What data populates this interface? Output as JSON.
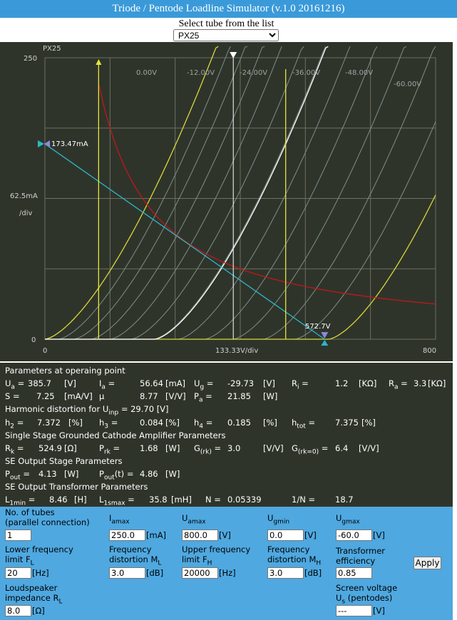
{
  "window": {
    "title": "Triode / Pentode Loadline Simulator (v.1.0 20161216)"
  },
  "tube_selector": {
    "label": "Select tube from the list",
    "selected": "PX25"
  },
  "plot": {
    "tube_name": "PX25",
    "y_top_label": "250",
    "y_zero_label": "0",
    "y_scale_label": "62.5mA",
    "y_div_label": "/div",
    "x_zero_label": "0",
    "x_end_label": "800",
    "x_scale_label": "133.33V/div",
    "current_marker": "173.47mA",
    "voltage_marker": "572.7V",
    "grid_labels": [
      "0.00V",
      "-12.00V",
      "-24.00V",
      "-36.00V",
      "-48.00V",
      "-60.00V"
    ],
    "colors": {
      "background": "#2f342b",
      "grid": "#6b7061",
      "curves": "#7d8f8a",
      "limit_curves": "#d8d83a",
      "operating_curve": "#ffffff",
      "dissipation": "#c01818",
      "loadline": "#2bb7c8",
      "markers": "#e6e63a"
    }
  },
  "params": {
    "op_header": "Parameters at operaing point",
    "ua": {
      "label": "U",
      "sub": "a",
      "eq": "=",
      "value": "385.7",
      "unit": "[V]"
    },
    "ia": {
      "label": "I",
      "sub": "a",
      "eq": "=",
      "value": "56.64",
      "unit": "[mA]"
    },
    "ug": {
      "label": "U",
      "sub": "g",
      "eq": "=",
      "value": "-29.73",
      "unit": "[V]"
    },
    "ri": {
      "label": "R",
      "sub": "i",
      "eq": "=",
      "value": "1.2",
      "unit": "[KΩ]"
    },
    "ra": {
      "label": "R",
      "sub": "a",
      "eq": "=",
      "value": "3.3",
      "unit": "[KΩ]"
    },
    "s": {
      "label": "S =",
      "value": "7.25",
      "unit": "[mA/V]"
    },
    "mu": {
      "label": "μ",
      "value": "8.77",
      "unit": "[V/V]"
    },
    "pa": {
      "label": "P",
      "sub": "a",
      "eq": "=",
      "value": "21.85",
      "unit": "[W]"
    },
    "harm_header_pre": "Harmonic distortion for U",
    "harm_header_sub": "inp",
    "harm_header_post": " = 29.70 [V]",
    "h2": {
      "label": "h",
      "sub": "2",
      "eq": "=",
      "value": "7.372",
      "unit": "[%]"
    },
    "h3": {
      "label": "h",
      "sub": "3",
      "eq": "=",
      "value": "0.084",
      "unit": "[%]"
    },
    "h4": {
      "label": "h",
      "sub": "4",
      "eq": "=",
      "value": "0.185",
      "unit": "[%]"
    },
    "htot": {
      "label": "h",
      "sub": "tot",
      "eq": "=",
      "value": "7.375",
      "unit": "[%]"
    },
    "gca_header": "Single Stage Grounded Cathode Amplifier Parameters",
    "rk": {
      "label": "R",
      "sub": "k",
      "eq": "=",
      "value": "524.9",
      "unit": "[Ω]"
    },
    "prk": {
      "label": "P",
      "sub": "rk",
      "eq": "=",
      "value": "1.68",
      "unit": "[W]"
    },
    "grk": {
      "label": "G",
      "sub": "(rk)",
      "eq": "=",
      "value": "3.0",
      "unit": "[V/V]"
    },
    "grk0": {
      "label": "G",
      "sub": "(rk=0)",
      "eq": "=",
      "value": "6.4",
      "unit": "[V/V]"
    },
    "se_header": "SE Output Stage Parameters",
    "pout": {
      "label": "P",
      "sub": "out",
      "eq": "=",
      "value": "4.13",
      "unit": "[W]"
    },
    "poutt": {
      "label": "P",
      "sub": "out",
      "mid": "(t)",
      "eq": "=",
      "value": "4.86",
      "unit": "[W]"
    },
    "tr_header": "SE Output Transformer Parameters",
    "l1min": {
      "label": "L",
      "sub": "1min",
      "eq": "=",
      "value": "8.46",
      "unit": "[H]"
    },
    "l1smax": {
      "label": "L",
      "sub": "1smax",
      "eq": "=",
      "value": "35.8",
      "unit": "[mH]"
    },
    "n": {
      "label": "N =",
      "value": "0.05339"
    },
    "inv_n": {
      "label": "1/N =",
      "value": "18.7"
    }
  },
  "inputs": {
    "tubes": {
      "label1": "No. of tubes",
      "label2": "(parallel connection)",
      "value": "1"
    },
    "iamax": {
      "label": "I",
      "sub": "amax",
      "value": "250.0",
      "unit": "[mA]"
    },
    "uamax": {
      "label": "U",
      "sub": "amax",
      "value": "800.0",
      "unit": "[V]"
    },
    "ugmin": {
      "label": "U",
      "sub": "gmin",
      "value": "0.0",
      "unit": "[V]"
    },
    "ugmax": {
      "label": "U",
      "sub": "gmax",
      "value": "-60.0",
      "unit": "[V]"
    },
    "fl": {
      "label1": "Lower frequency",
      "label2": "limit F",
      "sub": "L",
      "value": "20",
      "unit": "[Hz]"
    },
    "ml": {
      "label1": "Frequency",
      "label2": "distortion M",
      "sub": "L",
      "value": "3.0",
      "unit": "[dB]"
    },
    "fh": {
      "label1": "Upper frequency",
      "label2": "limit F",
      "sub": "H",
      "value": "20000",
      "unit": "[Hz]"
    },
    "mh": {
      "label1": "Frequency",
      "label2": "distortion M",
      "sub": "H",
      "value": "3.0",
      "unit": "[dB]"
    },
    "eff": {
      "label1": "Transformer",
      "label2": "efficiency",
      "value": "0.85"
    },
    "rl": {
      "label1": "Loudspeaker",
      "label2": "impedance R",
      "sub": "L",
      "value": "8.0",
      "unit": "[Ω]"
    },
    "us": {
      "label1": "Screen voltage",
      "label2": "U",
      "sub": "s",
      "post": " (pentodes)",
      "value": "---",
      "unit": "[V]"
    },
    "apply_label": "Apply"
  }
}
